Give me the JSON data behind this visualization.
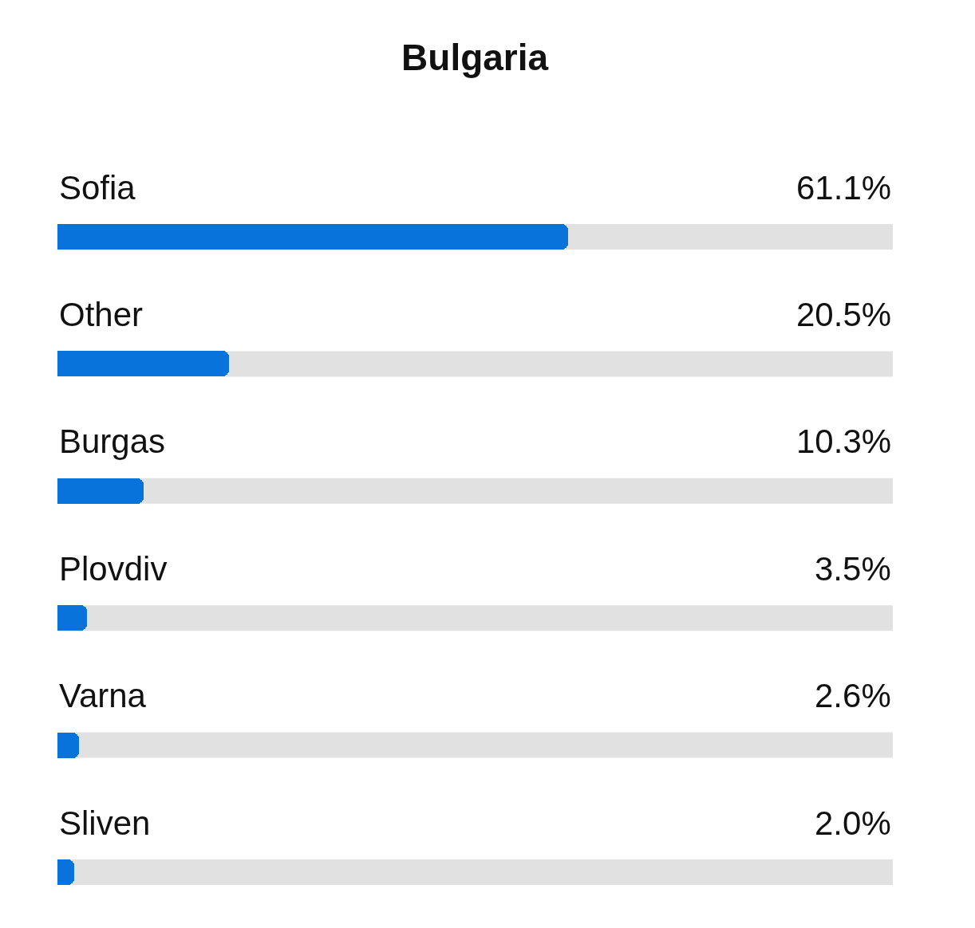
{
  "chart_data": {
    "type": "bar",
    "orientation": "horizontal",
    "title": "Bulgaria",
    "categories": [
      "Sofia",
      "Other",
      "Burgas",
      "Plovdiv",
      "Varna",
      "Sliven"
    ],
    "values": [
      61.1,
      20.5,
      10.3,
      3.5,
      2.6,
      2.0
    ],
    "value_labels": [
      "61.1%",
      "20.5%",
      "10.3%",
      "3.5%",
      "2.6%",
      "2.0%"
    ],
    "color": "#0873db",
    "xlim": [
      0,
      100
    ],
    "tick_labels": "y"
  }
}
